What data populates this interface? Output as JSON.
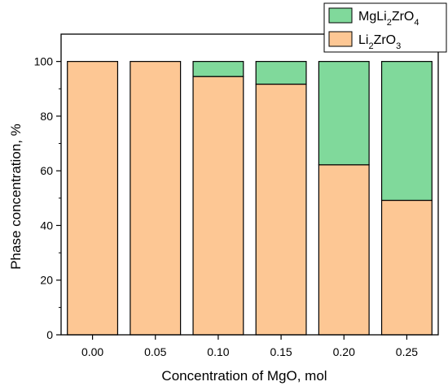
{
  "chart_data": {
    "type": "bar",
    "stacked": true,
    "categories": [
      "0.00",
      "0.05",
      "0.10",
      "0.15",
      "0.20",
      "0.25"
    ],
    "series": [
      {
        "name": "Li2ZrO3",
        "values": [
          100,
          100,
          94.5,
          91.7,
          62.2,
          49.2
        ],
        "color": "#fdc794"
      },
      {
        "name": "MgLi2ZrO4",
        "values": [
          0,
          0,
          5.5,
          8.3,
          37.8,
          50.8
        ],
        "color": "#80d99b"
      }
    ],
    "legend": {
      "placement": "top-right",
      "order": [
        "MgLi2ZrO4",
        "Li2ZrO3"
      ],
      "entries": [
        {
          "base": "MgLi",
          "sub1": "2",
          "mid": "ZrO",
          "sub2": "4"
        },
        {
          "base": "Li",
          "sub1": "2",
          "mid": "ZrO",
          "sub2": "3"
        }
      ]
    },
    "xlabel": "Concentration of MgO, mol",
    "ylabel": "Phase concentration, %",
    "ylim": [
      0,
      110
    ],
    "yticks": [
      0,
      20,
      40,
      60,
      80,
      100
    ],
    "grid": false,
    "bar_edge_color": "#000000"
  }
}
